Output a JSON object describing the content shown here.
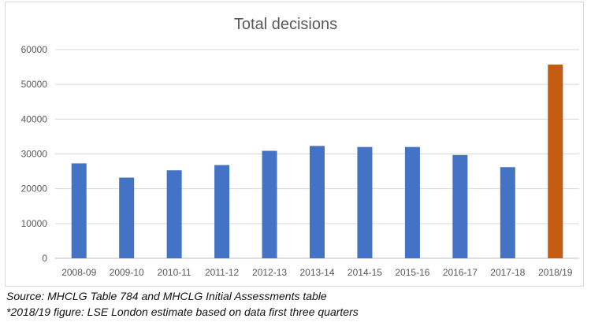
{
  "chart_data": {
    "type": "bar",
    "title": "Total decisions",
    "xlabel": "",
    "ylabel": "",
    "categories": [
      "2008-09",
      "2009-10",
      "2010-11",
      "2011-12",
      "2012-13",
      "2013-14",
      "2014-15",
      "2015-16",
      "2016-17",
      "2017-18",
      "2018/19"
    ],
    "values": [
      27300,
      23200,
      25300,
      26800,
      30900,
      32300,
      32000,
      32000,
      29700,
      26200,
      55700
    ],
    "bar_colors": [
      "#4472c4",
      "#4472c4",
      "#4472c4",
      "#4472c4",
      "#4472c4",
      "#4472c4",
      "#4472c4",
      "#4472c4",
      "#4472c4",
      "#4472c4",
      "#c55a11"
    ],
    "ylim": [
      0,
      60000
    ],
    "yticks": [
      0,
      10000,
      20000,
      30000,
      40000,
      50000,
      60000
    ],
    "ytick_labels": [
      "0",
      "10000",
      "20000",
      "30000",
      "40000",
      "50000",
      "60000"
    ],
    "grid": true,
    "legend": "none"
  },
  "notes": {
    "source": "Source: MHCLG Table 784 and MHCLG Initial Assessments table",
    "estimate": "*2018/19 figure: LSE London estimate based on data first three quarters"
  },
  "colors": {
    "gridline": "#d9d9d9",
    "axis": "#bfbfbf",
    "text": "#595959"
  }
}
